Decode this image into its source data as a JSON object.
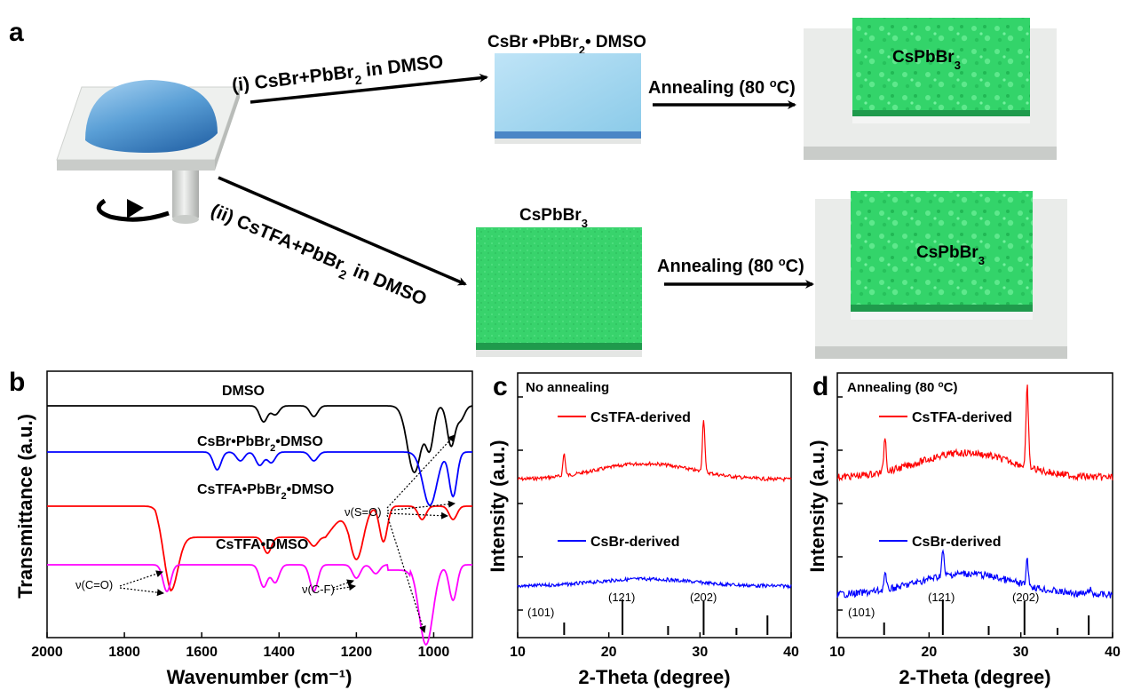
{
  "panel_a": {
    "label": "a",
    "route1": {
      "label": "(i) CsBr+PbBr",
      "sub": "2",
      "tail": " in DMSO"
    },
    "route2": {
      "label": "(ii) CsTFA+PbBr",
      "sub": "2",
      "tail": " in DMSO"
    },
    "intermediate1": {
      "pre": "CsBr •PbBr",
      "sub": "2",
      "post": "• DMSO"
    },
    "intermediate2": {
      "pre": "CsPbBr",
      "sub": "3"
    },
    "annealing1": {
      "pre": "Annealing (80 ",
      "sup": "o",
      "post": "C)"
    },
    "annealing2": {
      "pre": "Annealing (80 ",
      "sup": "o",
      "post": "C)"
    },
    "product1": {
      "pre": "CsPbBr",
      "sub": "3"
    },
    "product2": {
      "pre": "CsPbBr",
      "sub": "3"
    },
    "colors": {
      "dome": "#5a9fd6",
      "blue_film": "#a8d8f0",
      "green_film": "#33d46a",
      "substrate": "#e4e6e4"
    }
  },
  "chart_data": [
    {
      "type": "line",
      "panel": "b",
      "xlabel": "Wavenumber (cm⁻¹)",
      "ylabel": "Transmittance (a.u.)",
      "xlim": [
        2000,
        900
      ],
      "xticks": [
        "2000",
        "1800",
        "1600",
        "1400",
        "1200",
        "1000"
      ],
      "series": [
        {
          "name": "DMSO",
          "color": "#000000",
          "dips": [
            [
              1440,
              18
            ],
            [
              1410,
              10
            ],
            [
              1310,
              12
            ],
            [
              1050,
              75
            ],
            [
              1010,
              45
            ],
            [
              955,
              45
            ],
            [
              930,
              15
            ]
          ]
        },
        {
          "name": "CsBr•PbBr₂•DMSO",
          "color": "#0000ff",
          "dips": [
            [
              1560,
              20
            ],
            [
              1500,
              10
            ],
            [
              1450,
              15
            ],
            [
              1420,
              12
            ],
            [
              1310,
              10
            ],
            [
              1010,
              60
            ],
            [
              950,
              50
            ]
          ]
        },
        {
          "name": "CsTFA•PbBr₂•DMSO",
          "color": "#ff0000",
          "dips": [
            [
              1680,
              60
            ],
            [
              1430,
              18
            ],
            [
              1310,
              10
            ],
            [
              1200,
              60
            ],
            [
              1130,
              40
            ],
            [
              1030,
              15
            ],
            [
              950,
              15
            ]
          ]
        },
        {
          "name": "CsTFA•DMSO",
          "color": "#ff00ff",
          "dips": [
            [
              1690,
              30
            ],
            [
              1440,
              25
            ],
            [
              1410,
              20
            ],
            [
              1310,
              30
            ],
            [
              1200,
              15
            ],
            [
              1150,
              10
            ],
            [
              1020,
              90
            ],
            [
              950,
              40
            ]
          ]
        }
      ],
      "annotations": [
        "ν(S=O)",
        "ν(C=O)",
        "ν(C-F)"
      ],
      "label_parts": {
        "s1": "DMSO",
        "s2": {
          "a": "CsBr•PbBr",
          "sub": "2",
          "b": "•DMSO"
        },
        "s3": {
          "a": "CsTFA•PbBr",
          "sub": "2",
          "b": "•DMSO"
        },
        "s4": "CsTFA•DMSO",
        "nu_so": "ν(S=O)",
        "nu_co": "ν(C=O)",
        "nu_cf": "ν(C-F)"
      }
    },
    {
      "type": "line",
      "panel": "c",
      "title": "No annealing",
      "xlabel": "2-Theta (degree)",
      "ylabel": "Intensity (a.u.)",
      "xlim": [
        10,
        40
      ],
      "xticks": [
        "10",
        "20",
        "30",
        "40"
      ],
      "series": [
        {
          "name": "CsTFA-derived",
          "color": "#ff0000",
          "peaks": [
            [
              15.1,
              25
            ],
            [
              30.4,
              60
            ]
          ]
        },
        {
          "name": "CsBr-derived",
          "color": "#0000ff",
          "peaks": []
        }
      ],
      "reference_lines": [
        [
          15.1,
          0.35
        ],
        [
          21.5,
          1.0
        ],
        [
          26.5,
          0.25
        ],
        [
          30.4,
          0.95
        ],
        [
          34.0,
          0.2
        ],
        [
          37.4,
          0.55
        ]
      ],
      "reference_labels": [
        "(101)",
        "(121)",
        "(202)"
      ]
    },
    {
      "type": "line",
      "panel": "d",
      "title": "Annealing (80 °C)",
      "xlabel": "2-Theta (degree)",
      "ylabel": "Intensity (a.u.)",
      "xlim": [
        10,
        40
      ],
      "xticks": [
        "10",
        "20",
        "30",
        "40"
      ],
      "series": [
        {
          "name": "CsTFA-derived",
          "color": "#ff0000",
          "peaks": [
            [
              15.2,
              40
            ],
            [
              30.7,
              90
            ]
          ]
        },
        {
          "name": "CsBr-derived",
          "color": "#0000ff",
          "peaks": [
            [
              15.2,
              18
            ],
            [
              21.5,
              28
            ],
            [
              30.7,
              28
            ],
            [
              37.5,
              6
            ]
          ]
        }
      ],
      "reference_lines": [
        [
          15.1,
          0.35
        ],
        [
          21.5,
          1.0
        ],
        [
          26.5,
          0.25
        ],
        [
          30.4,
          0.95
        ],
        [
          34.0,
          0.2
        ],
        [
          37.4,
          0.55
        ]
      ],
      "reference_labels": [
        "(101)",
        "(121)",
        "(202)"
      ],
      "title_parts": {
        "pre": "Annealing (80 ",
        "sup": "o",
        "post": "C)"
      }
    }
  ],
  "panel_labels": {
    "b": "b",
    "c": "c",
    "d": "d"
  }
}
